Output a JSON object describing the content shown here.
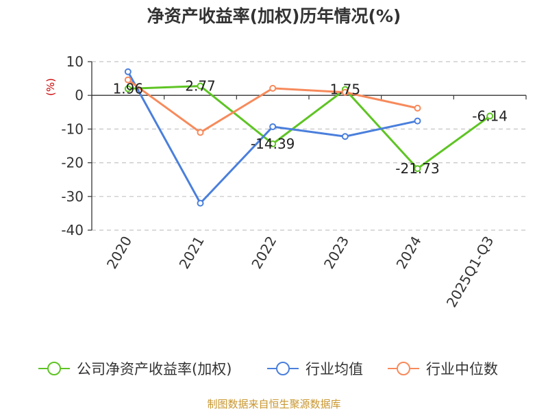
{
  "chart_data": {
    "type": "line",
    "title": "净资产收益率(加权)历年情况(%)",
    "ylabel": "(%)",
    "categories": [
      "2020",
      "2021",
      "2022",
      "2023",
      "2024",
      "2025Q1-Q3"
    ],
    "yticks": [
      10,
      0,
      -10,
      -20,
      -30,
      -40
    ],
    "ylim": [
      -40,
      10
    ],
    "grid": true,
    "legend_position": "bottom",
    "series": [
      {
        "name": "公司净资产收益率(加权)",
        "color": "#5ec423",
        "values": [
          1.96,
          2.77,
          -14.39,
          1.75,
          -21.73,
          -6.14
        ],
        "labels": [
          "1.96",
          "2.77",
          "-14.39",
          "1.75",
          "-21.73",
          "-6.14"
        ]
      },
      {
        "name": "行业均值",
        "color": "#4a7fdc",
        "values": [
          7.0,
          -32.0,
          -9.3,
          -12.2,
          -7.6,
          null
        ]
      },
      {
        "name": "行业中位数",
        "color": "#f78a5b",
        "values": [
          4.6,
          -11.0,
          2.1,
          0.9,
          -3.8,
          null
        ]
      }
    ],
    "source": "制图数据来自恒生聚源数据库"
  }
}
